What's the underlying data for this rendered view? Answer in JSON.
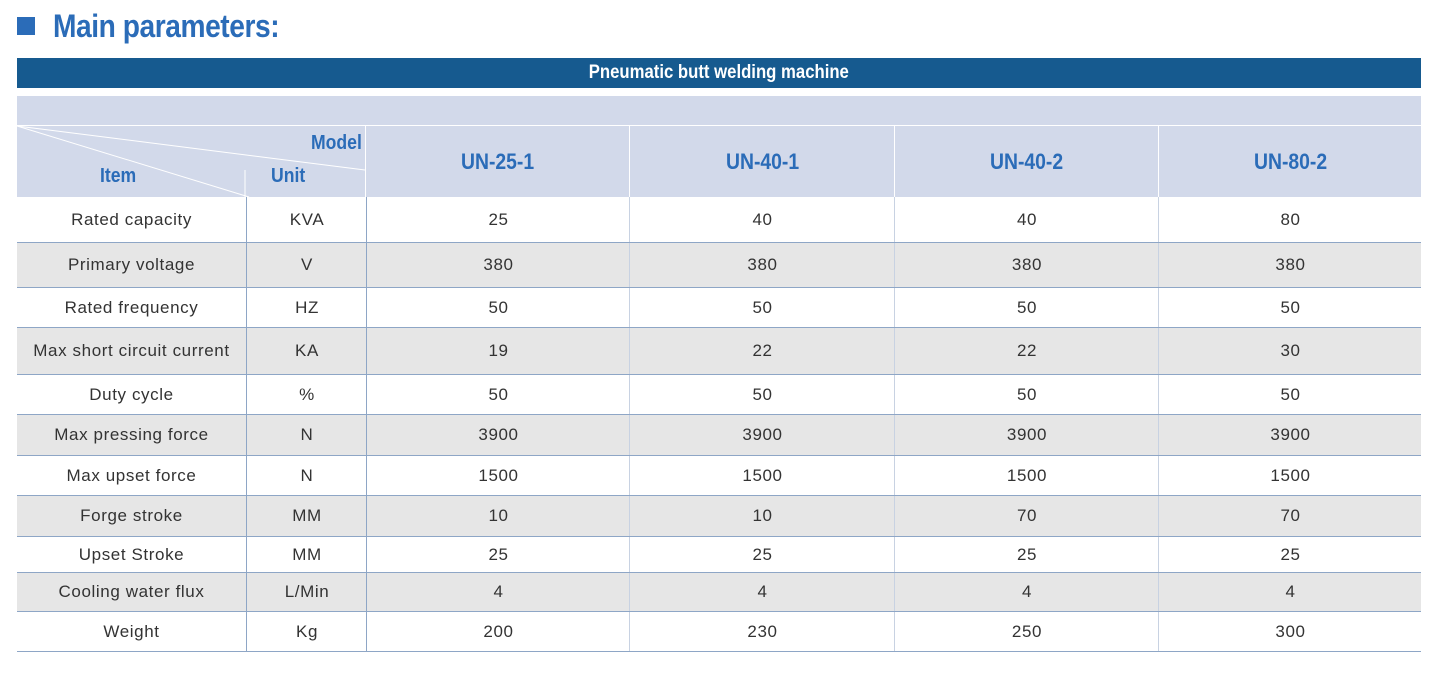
{
  "heading": {
    "title": "Main parameters:"
  },
  "table": {
    "caption": "Pneumatic butt welding machine",
    "corner": {
      "model": "Model",
      "item": "Item",
      "unit": "Unit"
    },
    "models": [
      "UN-25-1",
      "UN-40-1",
      "UN-40-2",
      "UN-80-2"
    ],
    "rows": [
      {
        "item": "Rated capacity",
        "unit": "KVA",
        "values": [
          "25",
          "40",
          "40",
          "80"
        ]
      },
      {
        "item": "Primary voltage",
        "unit": "V",
        "values": [
          "380",
          "380",
          "380",
          "380"
        ]
      },
      {
        "item": "Rated frequency",
        "unit": "HZ",
        "values": [
          "50",
          "50",
          "50",
          "50"
        ]
      },
      {
        "item": "Max short circuit current",
        "unit": "KA",
        "values": [
          "19",
          "22",
          "22",
          "30"
        ]
      },
      {
        "item": "Duty cycle",
        "unit": "%",
        "values": [
          "50",
          "50",
          "50",
          "50"
        ]
      },
      {
        "item": "Max pressing force",
        "unit": "N",
        "values": [
          "3900",
          "3900",
          "3900",
          "3900"
        ]
      },
      {
        "item": "Max upset force",
        "unit": "N",
        "values": [
          "1500",
          "1500",
          "1500",
          "1500"
        ]
      },
      {
        "item": "Forge stroke",
        "unit": "MM",
        "values": [
          "10",
          "10",
          "70",
          "70"
        ]
      },
      {
        "item": "Upset Stroke",
        "unit": "MM",
        "values": [
          "25",
          "25",
          "25",
          "25"
        ]
      },
      {
        "item": "Cooling water flux",
        "unit": "L/Min",
        "values": [
          "4",
          "4",
          "4",
          "4"
        ]
      },
      {
        "item": "Weight",
        "unit": "Kg",
        "values": [
          "200",
          "230",
          "250",
          "300"
        ]
      }
    ]
  },
  "colors": {
    "accent": "#2b6cb8",
    "banner": "#165a8f",
    "header_bg": "#d2d9ea",
    "alt_row": "#e6e6e6"
  }
}
